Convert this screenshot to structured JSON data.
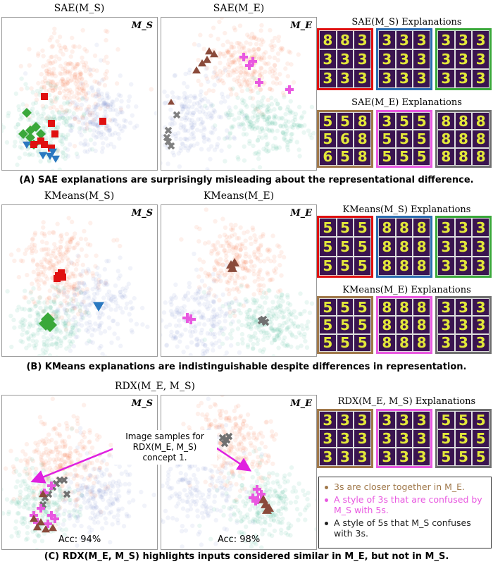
{
  "section_a": {
    "plot1_title": "SAE(M_S)",
    "plot2_title": "SAE(M_E)",
    "plot1_label": "M_S",
    "plot2_label": "M_E",
    "expl1_title": "SAE(M_S) Explanations",
    "expl2_title": "SAE(M_E) Explanations",
    "caption": "(A) SAE explanations are surprisingly misleading about the representational difference.",
    "grids": [
      {
        "color": "#e01010",
        "digits": [
          "8",
          "8",
          "3",
          "3",
          "3",
          "3",
          "3",
          "3",
          "3"
        ]
      },
      {
        "color": "#2a6db0",
        "digits": [
          "3",
          "3",
          "3",
          "3",
          "3",
          "3",
          "3",
          "3",
          "3"
        ]
      },
      {
        "color": "#3aa83a",
        "digits": [
          "3",
          "3",
          "3",
          "3",
          "3",
          "3",
          "3",
          "3",
          "3"
        ]
      },
      {
        "color": "#a0784a",
        "digits": [
          "5",
          "5",
          "8",
          "5",
          "6",
          "8",
          "6",
          "5",
          "8"
        ]
      },
      {
        "color": "#e858e0",
        "digits": [
          "3",
          "5",
          "5",
          "5",
          "5",
          "5",
          "5",
          "5",
          "5"
        ]
      },
      {
        "color": "#707070",
        "digits": [
          "8",
          "8",
          "8",
          "8",
          "8",
          "8",
          "8",
          "8",
          "8"
        ]
      }
    ]
  },
  "section_b": {
    "plot1_title": "KMeans(M_S)",
    "plot2_title": "KMeans(M_E)",
    "plot1_label": "M_S",
    "plot2_label": "M_E",
    "expl1_title": "KMeans(M_S) Explanations",
    "expl2_title": "KMeans(M_E) Explanations",
    "caption": "(B) KMeans explanations are indistinguishable despite differences in representation.",
    "grids": [
      {
        "color": "#e01010",
        "digits": [
          "5",
          "5",
          "5",
          "5",
          "5",
          "5",
          "5",
          "5",
          "5"
        ]
      },
      {
        "color": "#2a6db0",
        "digits": [
          "8",
          "8",
          "8",
          "8",
          "8",
          "8",
          "8",
          "8",
          "8"
        ]
      },
      {
        "color": "#3aa83a",
        "digits": [
          "3",
          "3",
          "3",
          "3",
          "3",
          "3",
          "3",
          "3",
          "3"
        ]
      },
      {
        "color": "#a0784a",
        "digits": [
          "5",
          "5",
          "5",
          "5",
          "5",
          "5",
          "5",
          "5",
          "5"
        ]
      },
      {
        "color": "#e858e0",
        "digits": [
          "8",
          "8",
          "8",
          "8",
          "8",
          "8",
          "8",
          "8",
          "8"
        ]
      },
      {
        "color": "#707070",
        "digits": [
          "3",
          "3",
          "3",
          "3",
          "3",
          "3",
          "3",
          "3",
          "3"
        ]
      }
    ]
  },
  "section_c": {
    "title": "RDX(M_E, M_S)",
    "plot1_label": "M_S",
    "plot2_label": "M_E",
    "acc1": "Acc: 94%",
    "acc2": "Acc: 98%",
    "callout": "Image samples for RDX(M_E, M_S) concept 1.",
    "expl_title": "RDX(M_E, M_S) Explanations",
    "caption": "(C) RDX(M_E, M_S) highlights inputs considered similar in M_E, but not in M_S.",
    "grids": [
      {
        "color": "#a0784a",
        "digits": [
          "3",
          "3",
          "3",
          "3",
          "3",
          "3",
          "3",
          "3",
          "3"
        ]
      },
      {
        "color": "#e858e0",
        "digits": [
          "3",
          "3",
          "3",
          "3",
          "3",
          "3",
          "3",
          "3",
          "3"
        ]
      },
      {
        "color": "#707070",
        "digits": [
          "5",
          "5",
          "5",
          "5",
          "5",
          "5",
          "5",
          "5",
          "5"
        ]
      }
    ],
    "legend": [
      {
        "color": "#a0784a",
        "text": "3s are closer together in M_E."
      },
      {
        "color": "#e858e0",
        "text": "A style of 3s that are confused by M_S with 5s."
      },
      {
        "color": "#222222",
        "text": "A style of 5s that M_S confuses with 3s."
      }
    ]
  }
}
